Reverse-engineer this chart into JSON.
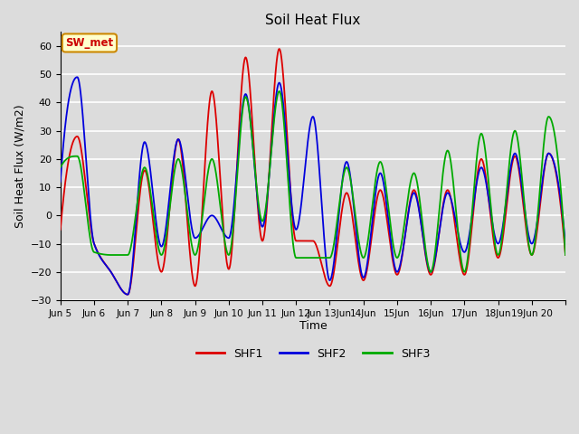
{
  "title": "Soil Heat Flux",
  "xlabel": "Time",
  "ylabel": "Soil Heat Flux (W/m2)",
  "ylim": [
    -30,
    65
  ],
  "background_color": "#dcdcdc",
  "plot_bg_color": "#dcdcdc",
  "grid_color": "white",
  "colors": {
    "SHF1": "#dd0000",
    "SHF2": "#0000dd",
    "SHF3": "#00aa00"
  },
  "annotation_text": "SW_met",
  "annotation_color": "#cc0000",
  "annotation_bg": "#ffffcc",
  "annotation_border": "#cc8800",
  "yticks": [
    -30,
    -20,
    -10,
    0,
    10,
    20,
    30,
    40,
    50,
    60
  ],
  "shf1_keypoints": [
    [
      5.0,
      -5
    ],
    [
      5.5,
      28
    ],
    [
      6.0,
      -10
    ],
    [
      6.5,
      -20
    ],
    [
      7.0,
      -28
    ],
    [
      7.5,
      16
    ],
    [
      8.0,
      -20
    ],
    [
      8.5,
      27
    ],
    [
      9.0,
      -25
    ],
    [
      9.5,
      44
    ],
    [
      10.0,
      -19
    ],
    [
      10.5,
      56
    ],
    [
      11.0,
      -9
    ],
    [
      11.5,
      59
    ],
    [
      12.0,
      -9
    ],
    [
      12.5,
      -9
    ],
    [
      13.0,
      -25
    ],
    [
      13.5,
      8
    ],
    [
      14.0,
      -23
    ],
    [
      14.5,
      9
    ],
    [
      15.0,
      -21
    ],
    [
      15.5,
      9
    ],
    [
      16.0,
      -21
    ],
    [
      16.5,
      9
    ],
    [
      17.0,
      -21
    ],
    [
      17.5,
      20
    ],
    [
      18.0,
      -15
    ],
    [
      18.5,
      21
    ],
    [
      19.0,
      -14
    ],
    [
      19.5,
      22
    ],
    [
      20.0,
      -14
    ]
  ],
  "shf2_keypoints": [
    [
      5.0,
      12
    ],
    [
      5.5,
      49
    ],
    [
      6.0,
      -10
    ],
    [
      6.5,
      -20
    ],
    [
      7.0,
      -28
    ],
    [
      7.5,
      26
    ],
    [
      8.0,
      -11
    ],
    [
      8.5,
      27
    ],
    [
      9.0,
      -8
    ],
    [
      9.5,
      0
    ],
    [
      10.0,
      -8
    ],
    [
      10.5,
      43
    ],
    [
      11.0,
      -4
    ],
    [
      11.5,
      47
    ],
    [
      12.0,
      -5
    ],
    [
      12.5,
      35
    ],
    [
      13.0,
      -23
    ],
    [
      13.5,
      19
    ],
    [
      14.0,
      -22
    ],
    [
      14.5,
      15
    ],
    [
      15.0,
      -20
    ],
    [
      15.5,
      8
    ],
    [
      16.0,
      -20
    ],
    [
      16.5,
      8
    ],
    [
      17.0,
      -13
    ],
    [
      17.5,
      17
    ],
    [
      18.0,
      -10
    ],
    [
      18.5,
      22
    ],
    [
      19.0,
      -10
    ],
    [
      19.5,
      22
    ],
    [
      20.0,
      -10
    ]
  ],
  "shf3_keypoints": [
    [
      5.0,
      17
    ],
    [
      5.5,
      21
    ],
    [
      6.0,
      -13
    ],
    [
      6.5,
      -14
    ],
    [
      7.0,
      -14
    ],
    [
      7.5,
      17
    ],
    [
      8.0,
      -14
    ],
    [
      8.5,
      20
    ],
    [
      9.0,
      -14
    ],
    [
      9.5,
      20
    ],
    [
      10.0,
      -14
    ],
    [
      10.5,
      42
    ],
    [
      11.0,
      -2
    ],
    [
      11.5,
      44
    ],
    [
      12.0,
      -15
    ],
    [
      12.5,
      -15
    ],
    [
      13.0,
      -15
    ],
    [
      13.5,
      17
    ],
    [
      14.0,
      -15
    ],
    [
      14.5,
      19
    ],
    [
      15.0,
      -15
    ],
    [
      15.5,
      15
    ],
    [
      16.0,
      -20
    ],
    [
      16.5,
      23
    ],
    [
      17.0,
      -20
    ],
    [
      17.5,
      29
    ],
    [
      18.0,
      -14
    ],
    [
      18.5,
      30
    ],
    [
      19.0,
      -14
    ],
    [
      19.5,
      35
    ],
    [
      20.0,
      -14
    ]
  ]
}
